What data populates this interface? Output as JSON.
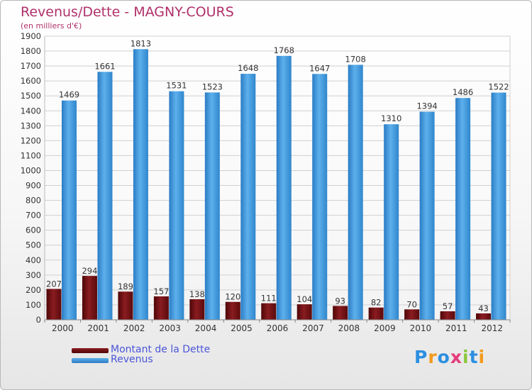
{
  "title": "Revenus/Dette - MAGNY-COURS",
  "subtitle": "(en milliers d'€)",
  "legend": {
    "dette": "Montant de la Dette",
    "revenus": "Revenus"
  },
  "logo": {
    "letters": [
      "P",
      "r",
      "o",
      "x",
      "i",
      "t",
      "i"
    ],
    "colors": [
      "#2d8fe0",
      "#f39a1d",
      "#2d8fe0",
      "#e43b7a",
      "#8cc63f",
      "#2d8fe0",
      "#f39a1d"
    ]
  },
  "colors": {
    "dette": "#6b0f12",
    "revenus": "#3d97d8",
    "title": "#b0306a",
    "legend_text": "#4a56d8"
  },
  "chart_data": {
    "type": "bar",
    "categories": [
      "2000",
      "2001",
      "2002",
      "2003",
      "2004",
      "2005",
      "2006",
      "2007",
      "2008",
      "2009",
      "2010",
      "2011",
      "2012"
    ],
    "series": [
      {
        "name": "Montant de la Dette",
        "values": [
          207,
          294,
          189,
          157,
          138,
          120,
          111,
          104,
          93,
          82,
          70,
          57,
          43
        ]
      },
      {
        "name": "Revenus",
        "values": [
          1469,
          1661,
          1813,
          1531,
          1523,
          1648,
          1768,
          1647,
          1708,
          1310,
          1394,
          1486,
          1522
        ]
      }
    ],
    "title": "Revenus/Dette - MAGNY-COURS",
    "subtitle": "(en milliers d'€)",
    "xlabel": "",
    "ylabel": "",
    "ylim": [
      0,
      1900
    ],
    "ytick_step": 100,
    "grid": true,
    "legend_position": "bottom-left"
  }
}
